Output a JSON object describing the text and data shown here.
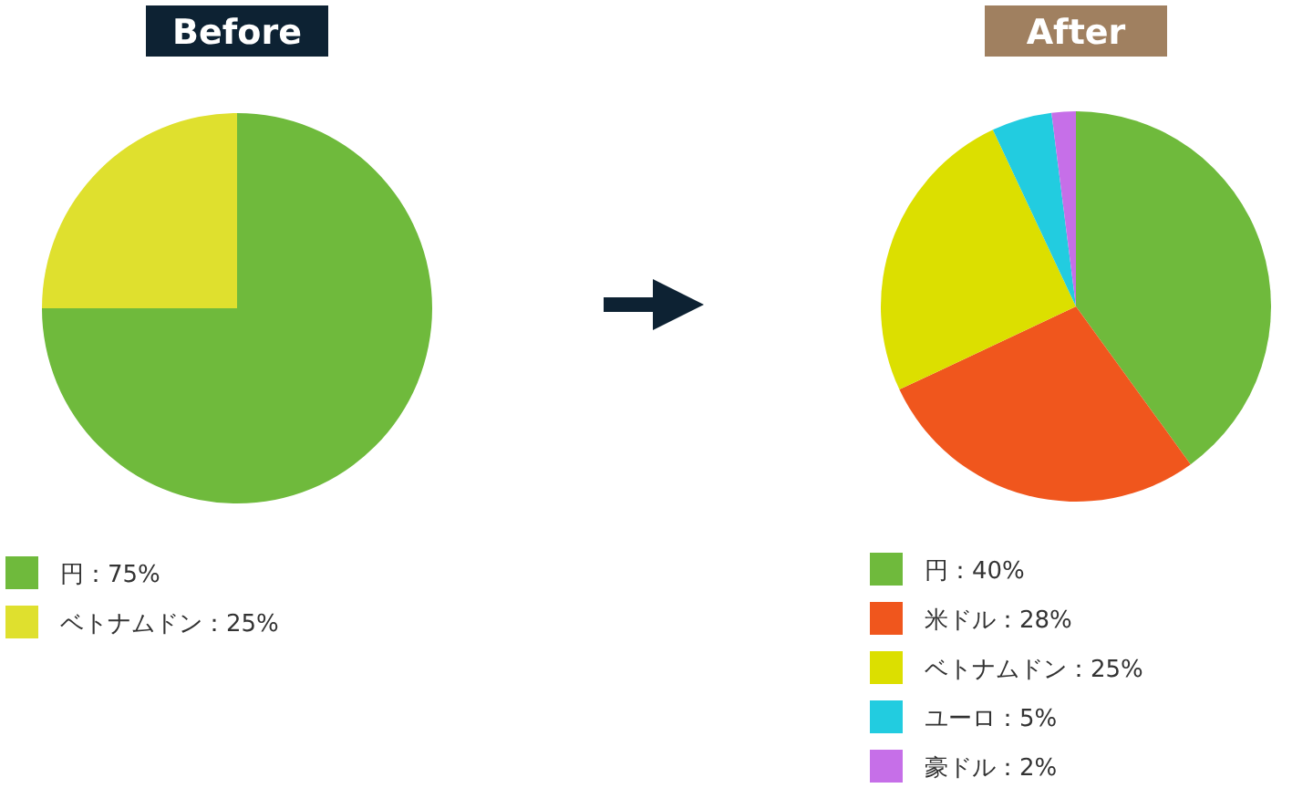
{
  "chart_data": [
    {
      "type": "pie",
      "title": "Before",
      "categories": [
        "円",
        "ベトナムドン"
      ],
      "values": [
        75,
        25
      ],
      "value_labels": [
        "75%",
        "25%"
      ],
      "colors": [
        "#6fba3c",
        "#dfe02e"
      ],
      "legend": "bottom"
    },
    {
      "type": "pie",
      "title": "After",
      "categories": [
        "円",
        "米ドル",
        "ベトナムドン",
        "ユーロ",
        "豪ドル"
      ],
      "values": [
        40,
        28,
        25,
        5,
        2
      ],
      "value_labels": [
        "40%",
        "28%",
        "25%",
        "5%",
        "2%"
      ],
      "colors": [
        "#6fba3c",
        "#f0561d",
        "#dcdf00",
        "#22cce0",
        "#c66fe8"
      ],
      "legend": "bottom"
    }
  ]
}
